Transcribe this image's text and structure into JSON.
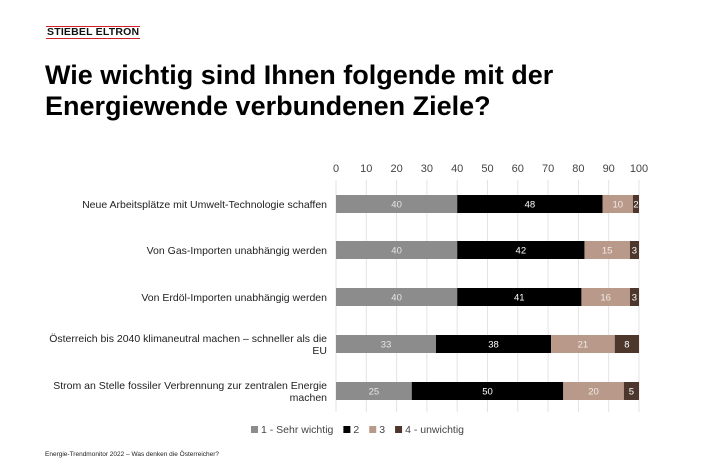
{
  "logo": "STIEBEL ELTRON",
  "title_line1": "Wie wichtig sind Ihnen folgende mit der",
  "title_line2": "Energiewende verbundenen Ziele?",
  "footer": "Energie-Trendmonitor 2022 – Was denken die Österreicher?",
  "chart_data": {
    "type": "bar",
    "orientation": "horizontal",
    "stacked": true,
    "title": "Wie wichtig sind Ihnen folgende mit der Energiewende verbundenen Ziele?",
    "categories": [
      [
        "Neue Arbeitsplätze mit Umwelt-Technologie schaffen"
      ],
      [
        "Von Gas-Importen unabhängig werden"
      ],
      [
        "Von Erdöl-Importen unabhängig werden"
      ],
      [
        "Österreich bis 2040 klimaneutral machen – schneller als die",
        "EU"
      ],
      [
        "Strom an Stelle fossiler Verbrennung zur zentralen Energie",
        "machen"
      ]
    ],
    "series": [
      {
        "name": "1 - Sehr wichtig",
        "color": "#8c8c8c",
        "label_color": "#e6e6e6",
        "values": [
          40,
          40,
          40,
          33,
          25
        ]
      },
      {
        "name": "2",
        "color": "#000000",
        "label_color": "#ffffff",
        "values": [
          48,
          42,
          41,
          38,
          50
        ]
      },
      {
        "name": "3",
        "color": "#b9998a",
        "label_color": "#f2ebe6",
        "values": [
          10,
          15,
          16,
          21,
          20
        ]
      },
      {
        "name": "4 - unwichtig",
        "color": "#4d372c",
        "label_color": "#ffffff",
        "values": [
          2,
          3,
          3,
          8,
          5
        ]
      }
    ],
    "xlim": [
      0,
      100
    ],
    "xticks": [
      0,
      10,
      20,
      30,
      40,
      50,
      60,
      70,
      80,
      90,
      100
    ],
    "xaxis_position": "top",
    "grid": true,
    "legend_position": "bottom"
  }
}
